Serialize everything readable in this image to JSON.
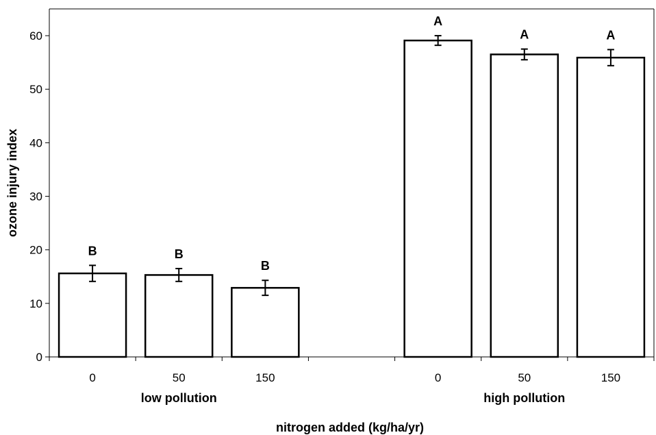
{
  "chart_data": {
    "type": "bar",
    "ylabel": "ozone injury index",
    "xlabel": "nitrogen added (kg/ha/yr)",
    "ylim": [
      0,
      65
    ],
    "yticks": [
      0,
      10,
      20,
      30,
      40,
      50,
      60
    ],
    "grid": false,
    "legend": "none",
    "bar_fill": "#ffffff",
    "bar_stroke": "#000000",
    "slots": [
      "0",
      "50",
      "150",
      "",
      "0",
      "50",
      "150"
    ],
    "groups": [
      {
        "name": "low pollution",
        "slot_range": [
          0,
          2
        ]
      },
      {
        "name": "high pollution",
        "slot_range": [
          4,
          6
        ]
      }
    ],
    "bars": [
      {
        "slot": 0,
        "group": "low pollution",
        "category": "0",
        "value": 15.6,
        "error": 1.5,
        "sig": "B"
      },
      {
        "slot": 1,
        "group": "low pollution",
        "category": "50",
        "value": 15.3,
        "error": 1.2,
        "sig": "B"
      },
      {
        "slot": 2,
        "group": "low pollution",
        "category": "150",
        "value": 12.9,
        "error": 1.4,
        "sig": "B"
      },
      {
        "slot": 4,
        "group": "high pollution",
        "category": "0",
        "value": 59.1,
        "error": 0.9,
        "sig": "A"
      },
      {
        "slot": 5,
        "group": "high pollution",
        "category": "50",
        "value": 56.5,
        "error": 1.0,
        "sig": "A"
      },
      {
        "slot": 6,
        "group": "high pollution",
        "category": "150",
        "value": 55.9,
        "error": 1.5,
        "sig": "A"
      }
    ]
  }
}
